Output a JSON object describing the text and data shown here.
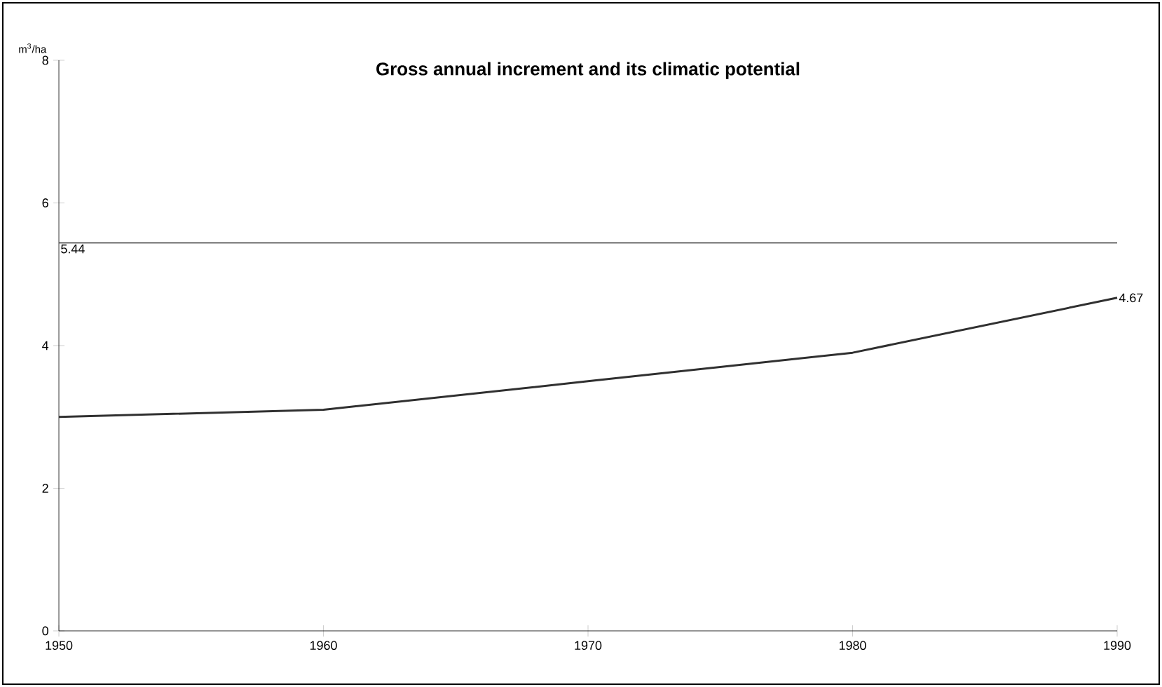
{
  "chart_data": {
    "type": "line",
    "title": "Gross annual increment and its climatic potential",
    "ylabel": "m$^{3}$/ha",
    "x": [
      1950,
      1960,
      1970,
      1980,
      1990
    ],
    "series": [
      {
        "color": "#303030",
        "values": [
          3.0,
          3.1,
          3.5,
          3.9,
          4.67
        ],
        "value_labels": [
          null,
          null,
          null,
          null,
          "4.67"
        ]
      }
    ],
    "xlim": [
      1950,
      1990
    ],
    "xticks": [
      1950,
      1960,
      1970,
      1980,
      1990
    ],
    "ylim": [
      0,
      8
    ],
    "yticks": [
      0,
      2,
      4,
      6,
      8
    ],
    "ref_lines": [
      {
        "axis": "y",
        "value": 5.44,
        "label": "5.44",
        "color": "#303030"
      }
    ],
    "line_style": "solid"
  }
}
